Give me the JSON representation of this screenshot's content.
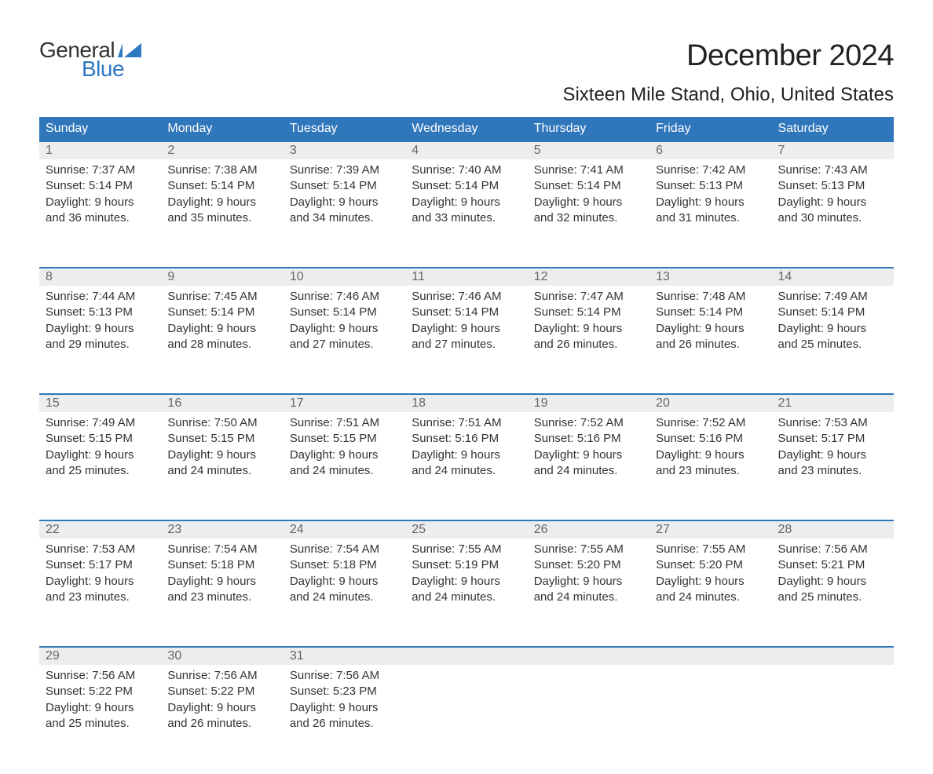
{
  "logo": {
    "text_top": "General",
    "text_bottom": "Blue",
    "shape_color": "#2f78c2",
    "text_top_color": "#333333",
    "text_bottom_color": "#2f78c2"
  },
  "title": "December 2024",
  "location": "Sixteen Mile Stand, Ohio, United States",
  "colors": {
    "header_bg": "#3076bb",
    "header_text": "#ffffff",
    "daynum_bg": "#eceded",
    "daynum_text": "#666666",
    "body_text": "#333333",
    "rule": "#3076bb",
    "page_bg": "#ffffff"
  },
  "font": {
    "title_size_pt": 29,
    "location_size_pt": 18,
    "header_size_pt": 12,
    "cell_size_pt": 11
  },
  "day_names": [
    "Sunday",
    "Monday",
    "Tuesday",
    "Wednesday",
    "Thursday",
    "Friday",
    "Saturday"
  ],
  "weeks": [
    [
      {
        "num": "1",
        "sunrise": "Sunrise: 7:37 AM",
        "sunset": "Sunset: 5:14 PM",
        "d1": "Daylight: 9 hours",
        "d2": "and 36 minutes."
      },
      {
        "num": "2",
        "sunrise": "Sunrise: 7:38 AM",
        "sunset": "Sunset: 5:14 PM",
        "d1": "Daylight: 9 hours",
        "d2": "and 35 minutes."
      },
      {
        "num": "3",
        "sunrise": "Sunrise: 7:39 AM",
        "sunset": "Sunset: 5:14 PM",
        "d1": "Daylight: 9 hours",
        "d2": "and 34 minutes."
      },
      {
        "num": "4",
        "sunrise": "Sunrise: 7:40 AM",
        "sunset": "Sunset: 5:14 PM",
        "d1": "Daylight: 9 hours",
        "d2": "and 33 minutes."
      },
      {
        "num": "5",
        "sunrise": "Sunrise: 7:41 AM",
        "sunset": "Sunset: 5:14 PM",
        "d1": "Daylight: 9 hours",
        "d2": "and 32 minutes."
      },
      {
        "num": "6",
        "sunrise": "Sunrise: 7:42 AM",
        "sunset": "Sunset: 5:13 PM",
        "d1": "Daylight: 9 hours",
        "d2": "and 31 minutes."
      },
      {
        "num": "7",
        "sunrise": "Sunrise: 7:43 AM",
        "sunset": "Sunset: 5:13 PM",
        "d1": "Daylight: 9 hours",
        "d2": "and 30 minutes."
      }
    ],
    [
      {
        "num": "8",
        "sunrise": "Sunrise: 7:44 AM",
        "sunset": "Sunset: 5:13 PM",
        "d1": "Daylight: 9 hours",
        "d2": "and 29 minutes."
      },
      {
        "num": "9",
        "sunrise": "Sunrise: 7:45 AM",
        "sunset": "Sunset: 5:14 PM",
        "d1": "Daylight: 9 hours",
        "d2": "and 28 minutes."
      },
      {
        "num": "10",
        "sunrise": "Sunrise: 7:46 AM",
        "sunset": "Sunset: 5:14 PM",
        "d1": "Daylight: 9 hours",
        "d2": "and 27 minutes."
      },
      {
        "num": "11",
        "sunrise": "Sunrise: 7:46 AM",
        "sunset": "Sunset: 5:14 PM",
        "d1": "Daylight: 9 hours",
        "d2": "and 27 minutes."
      },
      {
        "num": "12",
        "sunrise": "Sunrise: 7:47 AM",
        "sunset": "Sunset: 5:14 PM",
        "d1": "Daylight: 9 hours",
        "d2": "and 26 minutes."
      },
      {
        "num": "13",
        "sunrise": "Sunrise: 7:48 AM",
        "sunset": "Sunset: 5:14 PM",
        "d1": "Daylight: 9 hours",
        "d2": "and 26 minutes."
      },
      {
        "num": "14",
        "sunrise": "Sunrise: 7:49 AM",
        "sunset": "Sunset: 5:14 PM",
        "d1": "Daylight: 9 hours",
        "d2": "and 25 minutes."
      }
    ],
    [
      {
        "num": "15",
        "sunrise": "Sunrise: 7:49 AM",
        "sunset": "Sunset: 5:15 PM",
        "d1": "Daylight: 9 hours",
        "d2": "and 25 minutes."
      },
      {
        "num": "16",
        "sunrise": "Sunrise: 7:50 AM",
        "sunset": "Sunset: 5:15 PM",
        "d1": "Daylight: 9 hours",
        "d2": "and 24 minutes."
      },
      {
        "num": "17",
        "sunrise": "Sunrise: 7:51 AM",
        "sunset": "Sunset: 5:15 PM",
        "d1": "Daylight: 9 hours",
        "d2": "and 24 minutes."
      },
      {
        "num": "18",
        "sunrise": "Sunrise: 7:51 AM",
        "sunset": "Sunset: 5:16 PM",
        "d1": "Daylight: 9 hours",
        "d2": "and 24 minutes."
      },
      {
        "num": "19",
        "sunrise": "Sunrise: 7:52 AM",
        "sunset": "Sunset: 5:16 PM",
        "d1": "Daylight: 9 hours",
        "d2": "and 24 minutes."
      },
      {
        "num": "20",
        "sunrise": "Sunrise: 7:52 AM",
        "sunset": "Sunset: 5:16 PM",
        "d1": "Daylight: 9 hours",
        "d2": "and 23 minutes."
      },
      {
        "num": "21",
        "sunrise": "Sunrise: 7:53 AM",
        "sunset": "Sunset: 5:17 PM",
        "d1": "Daylight: 9 hours",
        "d2": "and 23 minutes."
      }
    ],
    [
      {
        "num": "22",
        "sunrise": "Sunrise: 7:53 AM",
        "sunset": "Sunset: 5:17 PM",
        "d1": "Daylight: 9 hours",
        "d2": "and 23 minutes."
      },
      {
        "num": "23",
        "sunrise": "Sunrise: 7:54 AM",
        "sunset": "Sunset: 5:18 PM",
        "d1": "Daylight: 9 hours",
        "d2": "and 23 minutes."
      },
      {
        "num": "24",
        "sunrise": "Sunrise: 7:54 AM",
        "sunset": "Sunset: 5:18 PM",
        "d1": "Daylight: 9 hours",
        "d2": "and 24 minutes."
      },
      {
        "num": "25",
        "sunrise": "Sunrise: 7:55 AM",
        "sunset": "Sunset: 5:19 PM",
        "d1": "Daylight: 9 hours",
        "d2": "and 24 minutes."
      },
      {
        "num": "26",
        "sunrise": "Sunrise: 7:55 AM",
        "sunset": "Sunset: 5:20 PM",
        "d1": "Daylight: 9 hours",
        "d2": "and 24 minutes."
      },
      {
        "num": "27",
        "sunrise": "Sunrise: 7:55 AM",
        "sunset": "Sunset: 5:20 PM",
        "d1": "Daylight: 9 hours",
        "d2": "and 24 minutes."
      },
      {
        "num": "28",
        "sunrise": "Sunrise: 7:56 AM",
        "sunset": "Sunset: 5:21 PM",
        "d1": "Daylight: 9 hours",
        "d2": "and 25 minutes."
      }
    ],
    [
      {
        "num": "29",
        "sunrise": "Sunrise: 7:56 AM",
        "sunset": "Sunset: 5:22 PM",
        "d1": "Daylight: 9 hours",
        "d2": "and 25 minutes."
      },
      {
        "num": "30",
        "sunrise": "Sunrise: 7:56 AM",
        "sunset": "Sunset: 5:22 PM",
        "d1": "Daylight: 9 hours",
        "d2": "and 26 minutes."
      },
      {
        "num": "31",
        "sunrise": "Sunrise: 7:56 AM",
        "sunset": "Sunset: 5:23 PM",
        "d1": "Daylight: 9 hours",
        "d2": "and 26 minutes."
      },
      null,
      null,
      null,
      null
    ]
  ]
}
